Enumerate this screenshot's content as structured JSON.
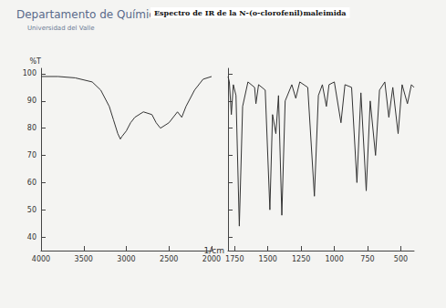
{
  "header": {
    "department": "Departamento de Química",
    "university": "Universidad del Valle"
  },
  "chart_data": [
    {
      "type": "line",
      "title": "Espectro de IR de la N-(o-clorofenil)maleimida",
      "ylabel": "%T",
      "x": [
        4000,
        3800,
        3600,
        3400,
        3300,
        3200,
        3150,
        3100,
        3070,
        3050,
        3000,
        2950,
        2900,
        2800,
        2700,
        2650,
        2600,
        2500,
        2400,
        2350,
        2300,
        2200,
        2100,
        2000
      ],
      "values": [
        99,
        99,
        98.5,
        97,
        94,
        88,
        83,
        78,
        76,
        77,
        79,
        82,
        84,
        86,
        85,
        82,
        80,
        82,
        86,
        84,
        88,
        94,
        98,
        99
      ],
      "color": "#333333",
      "xlim": [
        4000,
        2000
      ],
      "xticks": [
        4000,
        3500,
        3000,
        2500,
        2000
      ],
      "ylim": [
        35,
        102
      ],
      "yticks": [
        40,
        50,
        60,
        70,
        80,
        90,
        100
      ],
      "grid": false
    },
    {
      "type": "line",
      "xlabel": "1/cm",
      "x": [
        1800,
        1790,
        1775,
        1760,
        1740,
        1715,
        1690,
        1650,
        1600,
        1590,
        1570,
        1520,
        1485,
        1465,
        1440,
        1420,
        1395,
        1370,
        1320,
        1290,
        1260,
        1200,
        1150,
        1120,
        1090,
        1060,
        1040,
        1000,
        950,
        920,
        870,
        830,
        800,
        760,
        730,
        690,
        660,
        620,
        590,
        560,
        520,
        490,
        450,
        420,
        400
      ],
      "values": [
        99,
        97,
        85,
        96,
        92,
        44,
        88,
        97,
        95,
        89,
        96,
        94,
        50,
        85,
        78,
        92,
        48,
        90,
        96,
        91,
        97,
        95,
        55,
        92,
        96,
        88,
        96,
        97,
        82,
        96,
        95,
        60,
        93,
        57,
        90,
        70,
        94,
        97,
        84,
        95,
        78,
        96,
        89,
        96,
        95
      ],
      "color": "#333333",
      "xlim": [
        1800,
        400
      ],
      "xticks": [
        1750,
        1500,
        1250,
        1000,
        750,
        500
      ],
      "ylim": [
        35,
        102
      ],
      "yticks": [
        40,
        50,
        60,
        70,
        80,
        90,
        100
      ],
      "grid": false,
      "tick_labels": "x"
    }
  ]
}
